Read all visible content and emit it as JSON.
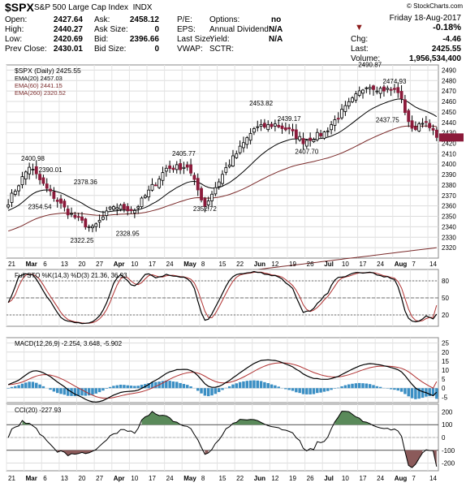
{
  "header": {
    "symbol": "$SPX",
    "name": "S&P 500 Large Cap Index",
    "exchange": "INDX",
    "copyright": "© StockCharts.com",
    "date": "Friday  18-Aug-2017",
    "change_pct": "-0.18%",
    "quote": [
      {
        "label": "Open:",
        "value": "2427.64"
      },
      {
        "label": "High:",
        "value": "2440.27"
      },
      {
        "label": "Low:",
        "value": "2420.69"
      },
      {
        "label": "Prev Close:",
        "value": "2430.01"
      }
    ],
    "bidask": [
      {
        "label": "Ask:",
        "value": "2458.12"
      },
      {
        "label": "Ask Size:",
        "value": "0"
      },
      {
        "label": "Bid:",
        "value": "2396.66"
      },
      {
        "label": "Bid Size:",
        "value": "0"
      }
    ],
    "ratios": [
      {
        "label": "P/E:",
        "value": ""
      },
      {
        "label": "EPS:",
        "value": ""
      },
      {
        "label": "Last Size:",
        "value": ""
      },
      {
        "label": "VWAP:",
        "value": ""
      }
    ],
    "options": [
      {
        "label": "Options:",
        "value": "no"
      },
      {
        "label": "Annual Dividend:",
        "value": "N/A"
      },
      {
        "label": "Yield:",
        "value": "N/A"
      },
      {
        "label": "SCTR:",
        "value": ""
      }
    ],
    "right": [
      {
        "label": "Chg:",
        "value": "-4.46"
      },
      {
        "label": "Last:",
        "value": "2425.55"
      },
      {
        "label": "Volume:",
        "value": "1,956,534,400"
      }
    ]
  },
  "chart_data": [
    {
      "type": "candlestick",
      "panel": "price",
      "legend": [
        "$SPX (Daily) 2425.55",
        "EMA(20) 2457.03",
        "EMA(60) 2441.15",
        "EMA(260) 2320.52"
      ],
      "legend_colors": [
        "#000000",
        "#000000",
        "#7a2a2a",
        "#7a2a2a"
      ],
      "ylim": [
        2310,
        2495
      ],
      "yticks": [
        2320,
        2330,
        2340,
        2350,
        2360,
        2370,
        2380,
        2390,
        2400,
        2410,
        2420,
        2430,
        2440,
        2450,
        2460,
        2470,
        2480,
        2490
      ],
      "x_labels": [
        "21",
        "Mar",
        "6",
        "13",
        "20",
        "27",
        "Apr",
        "10",
        "17",
        "24",
        "May",
        "8",
        "15",
        "22",
        "Jun",
        "12",
        "19",
        "26",
        "Jul",
        "10",
        "17",
        "24",
        "Aug",
        "7",
        "14"
      ],
      "x_label_bold": [
        "Mar",
        "Apr",
        "May",
        "Jun",
        "Jul",
        "Aug"
      ],
      "annotations": [
        {
          "text": "2490.87",
          "x": 103,
          "y": 2490.87
        },
        {
          "text": "2474.93",
          "x": 110,
          "y": 2474.93
        },
        {
          "text": "2453.82",
          "x": 72,
          "y": 2453.82
        },
        {
          "text": "2439.17",
          "x": 80,
          "y": 2439.17
        },
        {
          "text": "2437.75",
          "x": 108,
          "y": 2437.75
        },
        {
          "text": "2405.77",
          "x": 50,
          "y": 2405.77
        },
        {
          "text": "2407.70",
          "x": 85,
          "y": 2407.7
        },
        {
          "text": "2400.98",
          "x": 7,
          "y": 2400.98
        },
        {
          "text": "2390.01",
          "x": 12,
          "y": 2390.01
        },
        {
          "text": "2378.36",
          "x": 22,
          "y": 2378.36
        },
        {
          "text": "2354.54",
          "x": 9,
          "y": 2354.54
        },
        {
          "text": "2352.72",
          "x": 56,
          "y": 2352.72
        },
        {
          "text": "2328.95",
          "x": 34,
          "y": 2328.95
        },
        {
          "text": "2322.25",
          "x": 21,
          "y": 2322.25
        }
      ]
    },
    {
      "type": "line",
      "panel": "stochastic",
      "legend": [
        "Full STO %K(14,3) %D(3) 21.36, 36.93"
      ],
      "yticks": [
        20,
        50,
        80
      ],
      "ylim": [
        0,
        100
      ]
    },
    {
      "type": "line",
      "panel": "macd",
      "legend": [
        "MACD(12,26,9) -2.254, 3.648, -5.902"
      ],
      "yticks": [
        -5,
        0,
        5,
        10,
        15,
        20,
        25
      ],
      "ylim": [
        -8,
        28
      ]
    },
    {
      "type": "line",
      "panel": "cci",
      "legend": [
        "CCI(20) -227.93"
      ],
      "yticks": [
        -200,
        -100,
        0,
        100,
        200
      ],
      "ylim": [
        -260,
        260
      ]
    }
  ]
}
